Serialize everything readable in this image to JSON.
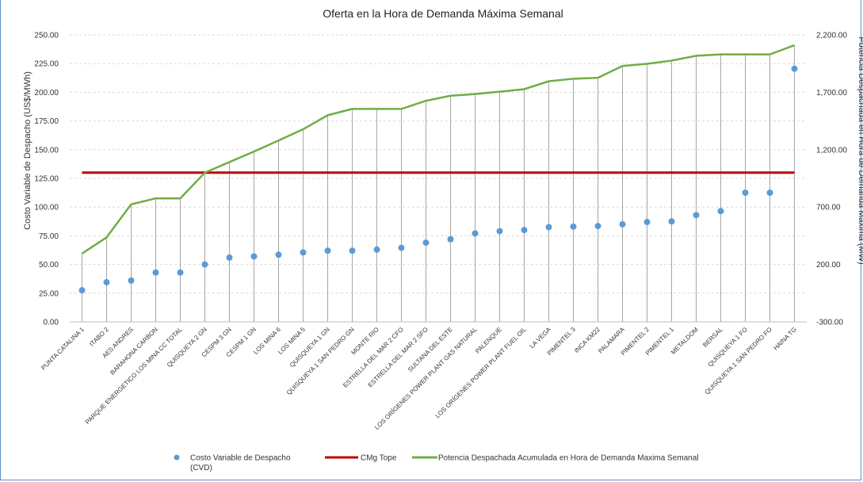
{
  "chart_data": {
    "type": "combo",
    "title": "Oferta en la Hora de Demanda Máxima Semanal",
    "ylabel_left": "Costo Variable de Despacho (US$/MWh)",
    "ylabel_right": "Potencia Despachada en Hora de Demanda Maxima (MW)",
    "y_left_range": [
      0,
      250
    ],
    "y_left_ticks": [
      "0.00",
      "25.00",
      "50.00",
      "75.00",
      "100.00",
      "125.00",
      "150.00",
      "175.00",
      "200.00",
      "225.00",
      "250.00"
    ],
    "y_right_range": [
      -300,
      2200
    ],
    "y_right_ticks": [
      "-300.00",
      "200.00",
      "700.00",
      "1,200.00",
      "1,700.00",
      "2,200.00"
    ],
    "grid": true,
    "legend_position": "bottom",
    "categories": [
      "PUNTA CATALINA 1",
      "ITABO 2",
      "AES ANDRES",
      "BARAHONA CARBON",
      "PARQUE ENERGETICO LOS MINA CC TOTAL",
      "QUISQUEYA 2 GN",
      "CESPM 3 GN",
      "CESPM 1 GN",
      "LOS MINA 6",
      "LOS MINA 5",
      "QUISQUEYA 1 GN",
      "QUISQUEYA 1 SAN PEDRO GN",
      "MONTE RIO",
      "ESTRELLA DEL MAR 2 CFO",
      "ESTRELLA DEL MAR 2 SFO",
      "SULTANA DEL ESTE",
      "LOS ORÍGENES POWER PLANT GAS NATURAL",
      "PALENQUE",
      "LOS ORÍGENES POWER PLANT FUEL OIL",
      "LA VEGA",
      "PIMENTEL 3",
      "INCA KM22",
      "PALAMARA",
      "PIMENTEL 2",
      "PIMENTEL 1",
      "METALDOM",
      "BERSAL",
      "QUISQUEYA 1 FO",
      "QUISQUEYA 1 SAN PEDRO FO",
      "HAINA TG"
    ],
    "series": [
      {
        "name": "Costo Variable de Despacho (CVD)",
        "type": "scatter",
        "axis": "left",
        "color": "#5b9bd5",
        "values": [
          27.5,
          34.5,
          36,
          43,
          43,
          50,
          56,
          57,
          58.5,
          60.5,
          62,
          62,
          63,
          64.5,
          69,
          72,
          77,
          79,
          80,
          82.5,
          83,
          83.5,
          85,
          87,
          87.5,
          93,
          96.5,
          112.5,
          112.5,
          220.5
        ]
      },
      {
        "name": "CMg Tope",
        "type": "line",
        "axis": "left",
        "color": "#c00000",
        "values": [
          130,
          130,
          130,
          130,
          130,
          130,
          130,
          130,
          130,
          130,
          130,
          130,
          130,
          130,
          130,
          130,
          130,
          130,
          130,
          130,
          130,
          130,
          130,
          130,
          130,
          130,
          130,
          130,
          130,
          130
        ]
      },
      {
        "name": "Potencia Despachada Acumulada en Hora de Demanda Maxima Semanal",
        "type": "line",
        "axis": "right",
        "color": "#70ad47",
        "values": [
          295,
          436,
          724,
          776,
          776,
          1000,
          1092,
          1184,
          1280,
          1378,
          1500,
          1555,
          1555,
          1555,
          1626,
          1670,
          1685,
          1705,
          1727,
          1796,
          1818,
          1826,
          1929,
          1948,
          1976,
          2018,
          2030,
          2030,
          2030,
          2110
        ]
      }
    ]
  }
}
